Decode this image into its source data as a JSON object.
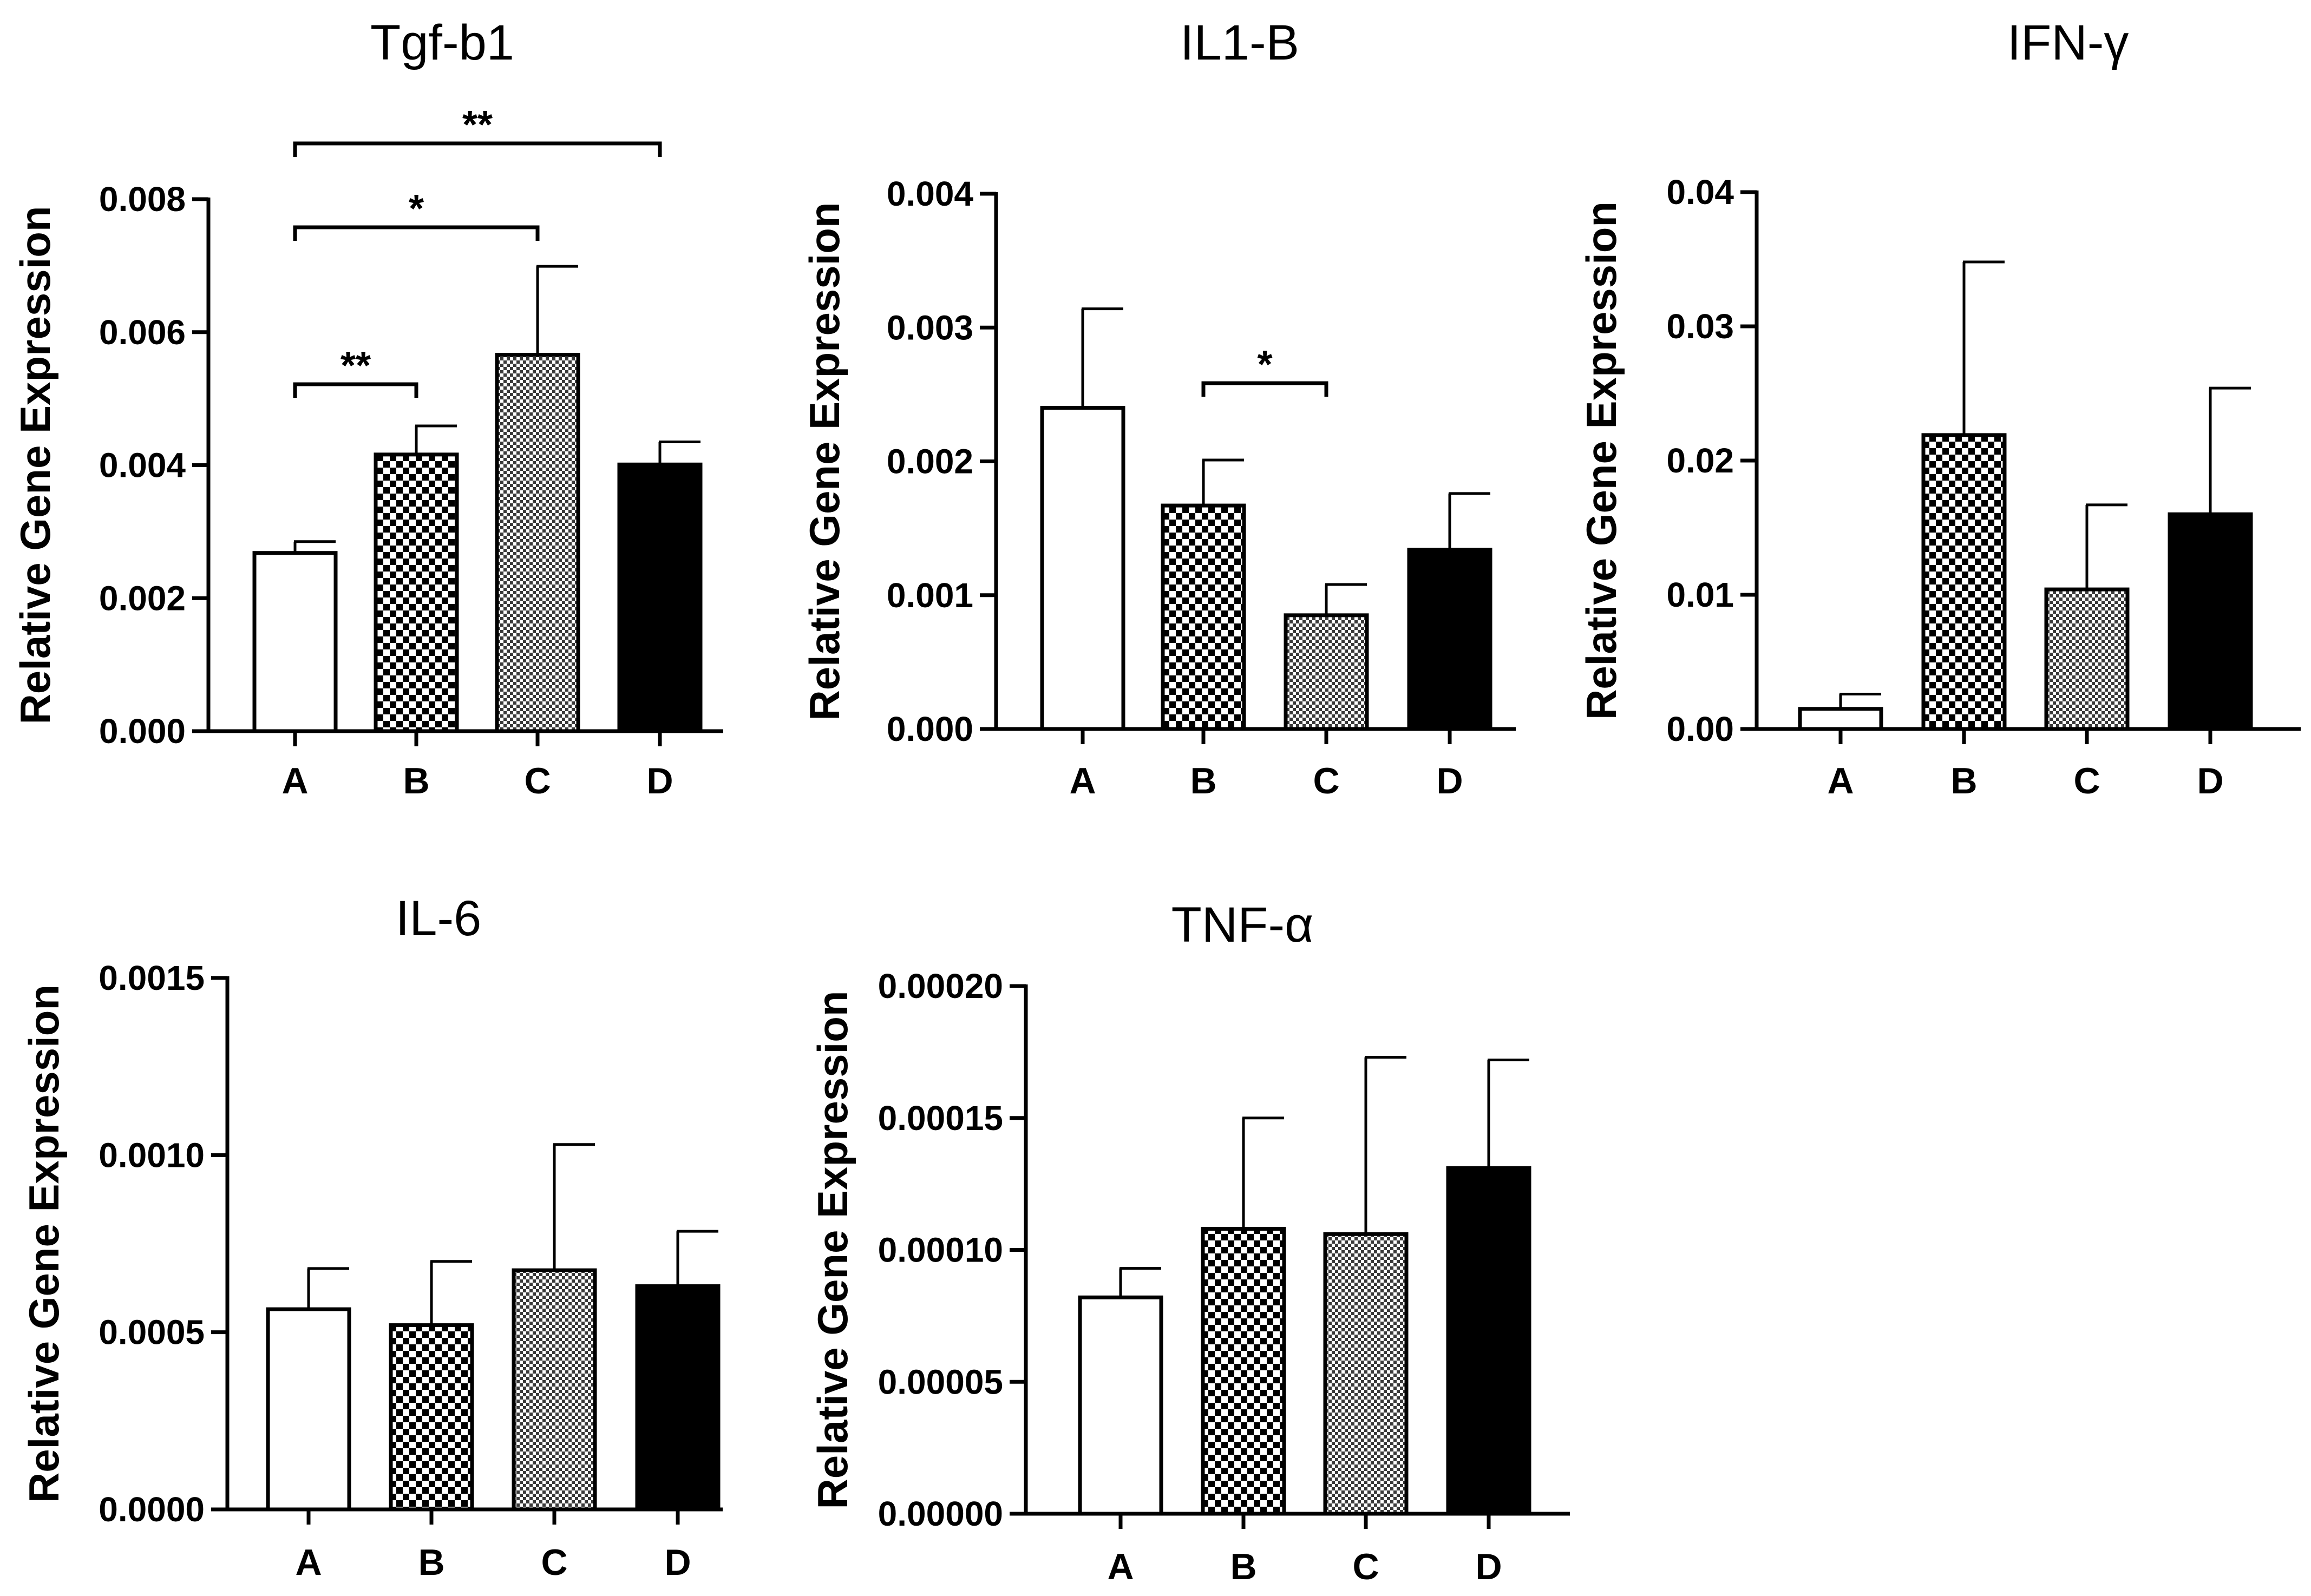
{
  "chart_data": [
    {
      "id": "tgf",
      "type": "bar",
      "title": "Tgf-b1",
      "ylabel": "Relative Gene Expression",
      "xlabel": "",
      "categories": [
        "A",
        "B",
        "C",
        "D"
      ],
      "values": [
        0.00268,
        0.00416,
        0.00566,
        0.00401
      ],
      "errors": [
        0.00017,
        0.00043,
        0.00133,
        0.00034
      ],
      "ylim": [
        0,
        0.008
      ],
      "yticks": [
        "0.000",
        "0.002",
        "0.004",
        "0.006",
        "0.008"
      ],
      "significance": [
        {
          "from": "A",
          "to": "B",
          "label": "**"
        },
        {
          "from": "A",
          "to": "C",
          "label": "*"
        },
        {
          "from": "A",
          "to": "D",
          "label": "**"
        }
      ]
    },
    {
      "id": "il1b",
      "type": "bar",
      "title": "IL1-B",
      "ylabel": "Relative Gene Expression",
      "xlabel": "",
      "categories": [
        "A",
        "B",
        "C",
        "D"
      ],
      "values": [
        0.0024,
        0.00167,
        0.00085,
        0.00134
      ],
      "errors": [
        0.00074,
        0.00034,
        0.00023,
        0.00042
      ],
      "ylim": [
        0,
        0.004
      ],
      "yticks": [
        "0.000",
        "0.001",
        "0.002",
        "0.003",
        "0.004"
      ],
      "significance": [
        {
          "from": "B",
          "to": "C",
          "label": "*"
        }
      ]
    },
    {
      "id": "ifng",
      "type": "bar",
      "title": "IFN-γ",
      "ylabel": "Relative Gene Expression",
      "xlabel": "",
      "categories": [
        "A",
        "B",
        "C",
        "D"
      ],
      "values": [
        0.0015,
        0.0219,
        0.0104,
        0.016
      ],
      "errors": [
        0.0011,
        0.0129,
        0.0063,
        0.0094
      ],
      "ylim": [
        0,
        0.04
      ],
      "yticks": [
        "0.00",
        "0.01",
        "0.02",
        "0.03",
        "0.04"
      ],
      "significance": []
    },
    {
      "id": "il6",
      "type": "bar",
      "title": "IL-6",
      "ylabel": "Relative Gene Expression",
      "xlabel": "",
      "categories": [
        "A",
        "B",
        "C",
        "D"
      ],
      "values": [
        0.000565,
        0.00052,
        0.000675,
        0.00063
      ],
      "errors": [
        0.000115,
        0.00018,
        0.000355,
        0.000155
      ],
      "ylim": [
        0,
        0.0015
      ],
      "yticks": [
        "0.0000",
        "0.0005",
        "0.0010",
        "0.0015"
      ],
      "significance": []
    },
    {
      "id": "tnfa",
      "type": "bar",
      "title": "TNF-α",
      "ylabel": "Relative Gene Expression",
      "xlabel": "",
      "categories": [
        "A",
        "B",
        "C",
        "D"
      ],
      "values": [
        8.2e-05,
        0.000108,
        0.000106,
        0.000131
      ],
      "errors": [
        1.1e-05,
        4.2e-05,
        6.7e-05,
        4.1e-05
      ],
      "ylim": [
        0,
        0.0002
      ],
      "yticks": [
        "0.00000",
        "0.00005",
        "0.00010",
        "0.00015",
        "0.00020"
      ],
      "significance": []
    }
  ],
  "colors": {
    "A": "#ffffff",
    "D": "#000000",
    "stroke": "#000000"
  }
}
